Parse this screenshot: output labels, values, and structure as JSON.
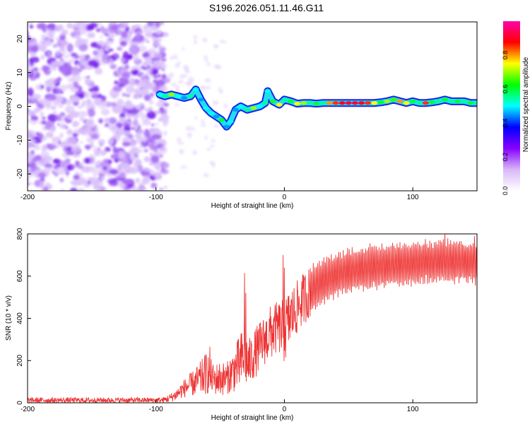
{
  "figure_title": "S196.2026.051.11.46.G11",
  "chart_data": [
    {
      "type": "heatmap",
      "name": "spectrogram",
      "xlabel": "Height of straight line (km)",
      "ylabel": "Frequency (Hz)",
      "xlim": [
        -200,
        150
      ],
      "ylim": [
        -25,
        25
      ],
      "xticks": [
        -200,
        -100,
        0,
        100
      ],
      "yticks": [
        -20,
        -10,
        0,
        10,
        20
      ],
      "colorbar": {
        "label": "Normalized spectral amplitude",
        "range": [
          0,
          1
        ],
        "ticks": [
          "0.0",
          "0.2",
          "0.4",
          "0.6",
          "0.8"
        ],
        "tick_values": [
          0.0,
          0.2,
          0.4,
          0.6,
          0.8
        ],
        "colormap": [
          "#ffffff",
          "#d8b8f8",
          "#8800ff",
          "#0000ff",
          "#00ffff",
          "#00ff00",
          "#ffff00",
          "#ff0000",
          "#ff00aa"
        ]
      },
      "noise_region_x": [
        -200,
        -95
      ],
      "signal_track": [
        {
          "x": -97,
          "f": 3.5,
          "amp": 0.5
        },
        {
          "x": -93,
          "f": 3.0,
          "amp": 0.55
        },
        {
          "x": -88,
          "f": 3.5,
          "amp": 0.7
        },
        {
          "x": -83,
          "f": 3.0,
          "amp": 0.5
        },
        {
          "x": -78,
          "f": 2.5,
          "amp": 0.45
        },
        {
          "x": -73,
          "f": 3.0,
          "amp": 0.55
        },
        {
          "x": -69,
          "f": 5.0,
          "amp": 0.5
        },
        {
          "x": -65,
          "f": 2.0,
          "amp": 0.45
        },
        {
          "x": -61,
          "f": -0.5,
          "amp": 0.5
        },
        {
          "x": -57,
          "f": -2.0,
          "amp": 0.5
        },
        {
          "x": -53,
          "f": -3.0,
          "amp": 0.45
        },
        {
          "x": -49,
          "f": -4.0,
          "amp": 0.6
        },
        {
          "x": -45,
          "f": -6.0,
          "amp": 0.45
        },
        {
          "x": -42,
          "f": -4.5,
          "amp": 0.5
        },
        {
          "x": -38,
          "f": -1.0,
          "amp": 0.45
        },
        {
          "x": -34,
          "f": 0.0,
          "amp": 0.5
        },
        {
          "x": -29,
          "f": -1.0,
          "amp": 0.55
        },
        {
          "x": -24,
          "f": -0.5,
          "amp": 0.7
        },
        {
          "x": -19,
          "f": 0.0,
          "amp": 0.5
        },
        {
          "x": -15,
          "f": 1.0,
          "amp": 0.55
        },
        {
          "x": -13,
          "f": 4.5,
          "amp": 0.5
        },
        {
          "x": -9,
          "f": 1.5,
          "amp": 0.6
        },
        {
          "x": -4,
          "f": 0.5,
          "amp": 0.75
        },
        {
          "x": 0,
          "f": 2.0,
          "amp": 0.55
        },
        {
          "x": 5,
          "f": 1.5,
          "amp": 0.6
        },
        {
          "x": 10,
          "f": 0.8,
          "amp": 0.75
        },
        {
          "x": 15,
          "f": 1.0,
          "amp": 0.7
        },
        {
          "x": 20,
          "f": 1.0,
          "amp": 0.55
        },
        {
          "x": 25,
          "f": 0.8,
          "amp": 0.6
        },
        {
          "x": 30,
          "f": 1.0,
          "amp": 0.55
        },
        {
          "x": 35,
          "f": 1.0,
          "amp": 0.8
        },
        {
          "x": 40,
          "f": 1.0,
          "amp": 0.85
        },
        {
          "x": 45,
          "f": 1.0,
          "amp": 0.9
        },
        {
          "x": 50,
          "f": 1.0,
          "amp": 0.92
        },
        {
          "x": 55,
          "f": 1.0,
          "amp": 0.92
        },
        {
          "x": 60,
          "f": 1.0,
          "amp": 0.9
        },
        {
          "x": 65,
          "f": 1.0,
          "amp": 0.85
        },
        {
          "x": 70,
          "f": 1.0,
          "amp": 0.75
        },
        {
          "x": 75,
          "f": 1.2,
          "amp": 0.6
        },
        {
          "x": 80,
          "f": 1.5,
          "amp": 0.7
        },
        {
          "x": 85,
          "f": 2.0,
          "amp": 0.65
        },
        {
          "x": 90,
          "f": 1.5,
          "amp": 0.8
        },
        {
          "x": 95,
          "f": 1.0,
          "amp": 0.75
        },
        {
          "x": 100,
          "f": 1.5,
          "amp": 0.6
        },
        {
          "x": 105,
          "f": 1.0,
          "amp": 0.55
        },
        {
          "x": 110,
          "f": 1.0,
          "amp": 0.85
        },
        {
          "x": 115,
          "f": 1.2,
          "amp": 0.6
        },
        {
          "x": 120,
          "f": 1.5,
          "amp": 0.55
        },
        {
          "x": 125,
          "f": 2.0,
          "amp": 0.6
        },
        {
          "x": 130,
          "f": 1.5,
          "amp": 0.55
        },
        {
          "x": 135,
          "f": 1.5,
          "amp": 0.6
        },
        {
          "x": 140,
          "f": 1.5,
          "amp": 0.55
        },
        {
          "x": 145,
          "f": 1.0,
          "amp": 0.6
        },
        {
          "x": 150,
          "f": 1.0,
          "amp": 0.55
        }
      ]
    },
    {
      "type": "line",
      "name": "snr",
      "xlabel": "Height of straight line (km)",
      "ylabel": "SNR (10 * v/v)",
      "xlim": [
        -200,
        150
      ],
      "ylim": [
        0,
        800
      ],
      "xticks": [
        -200,
        -100,
        0,
        100
      ],
      "yticks": [
        0,
        200,
        400,
        600,
        800
      ],
      "color": "#ee3333",
      "envelope": {
        "x": [
          -200,
          -120,
          -95,
          -90,
          -85,
          -80,
          -75,
          -70,
          -65,
          -60,
          -55,
          -50,
          -45,
          -40,
          -35,
          -31,
          -28,
          -25,
          -20,
          -15,
          -10,
          -5,
          0,
          5,
          10,
          15,
          20,
          25,
          30,
          40,
          50,
          60,
          70,
          80,
          90,
          100,
          110,
          120,
          130,
          140,
          150
        ],
        "low": [
          0,
          0,
          0,
          0,
          10,
          20,
          30,
          30,
          30,
          40,
          40,
          30,
          40,
          50,
          50,
          80,
          60,
          100,
          140,
          180,
          200,
          240,
          180,
          270,
          320,
          370,
          400,
          430,
          460,
          490,
          510,
          520,
          530,
          540,
          540,
          550,
          560,
          560,
          560,
          560,
          550
        ],
        "high": [
          25,
          25,
          25,
          40,
          60,
          100,
          130,
          160,
          200,
          250,
          180,
          200,
          190,
          250,
          320,
          380,
          300,
          330,
          380,
          420,
          470,
          480,
          500,
          550,
          580,
          620,
          650,
          680,
          700,
          720,
          740,
          750,
          760,
          760,
          770,
          770,
          780,
          780,
          780,
          780,
          780
        ]
      },
      "spikes": [
        {
          "x": -31,
          "y": 615
        },
        {
          "x": -30,
          "y": 520
        },
        {
          "x": -1,
          "y": 700
        },
        {
          "x": 0,
          "y": 640
        },
        {
          "x": -58,
          "y": 265
        },
        {
          "x": 125,
          "y": 800
        },
        {
          "x": 148,
          "y": 790
        }
      ]
    }
  ]
}
